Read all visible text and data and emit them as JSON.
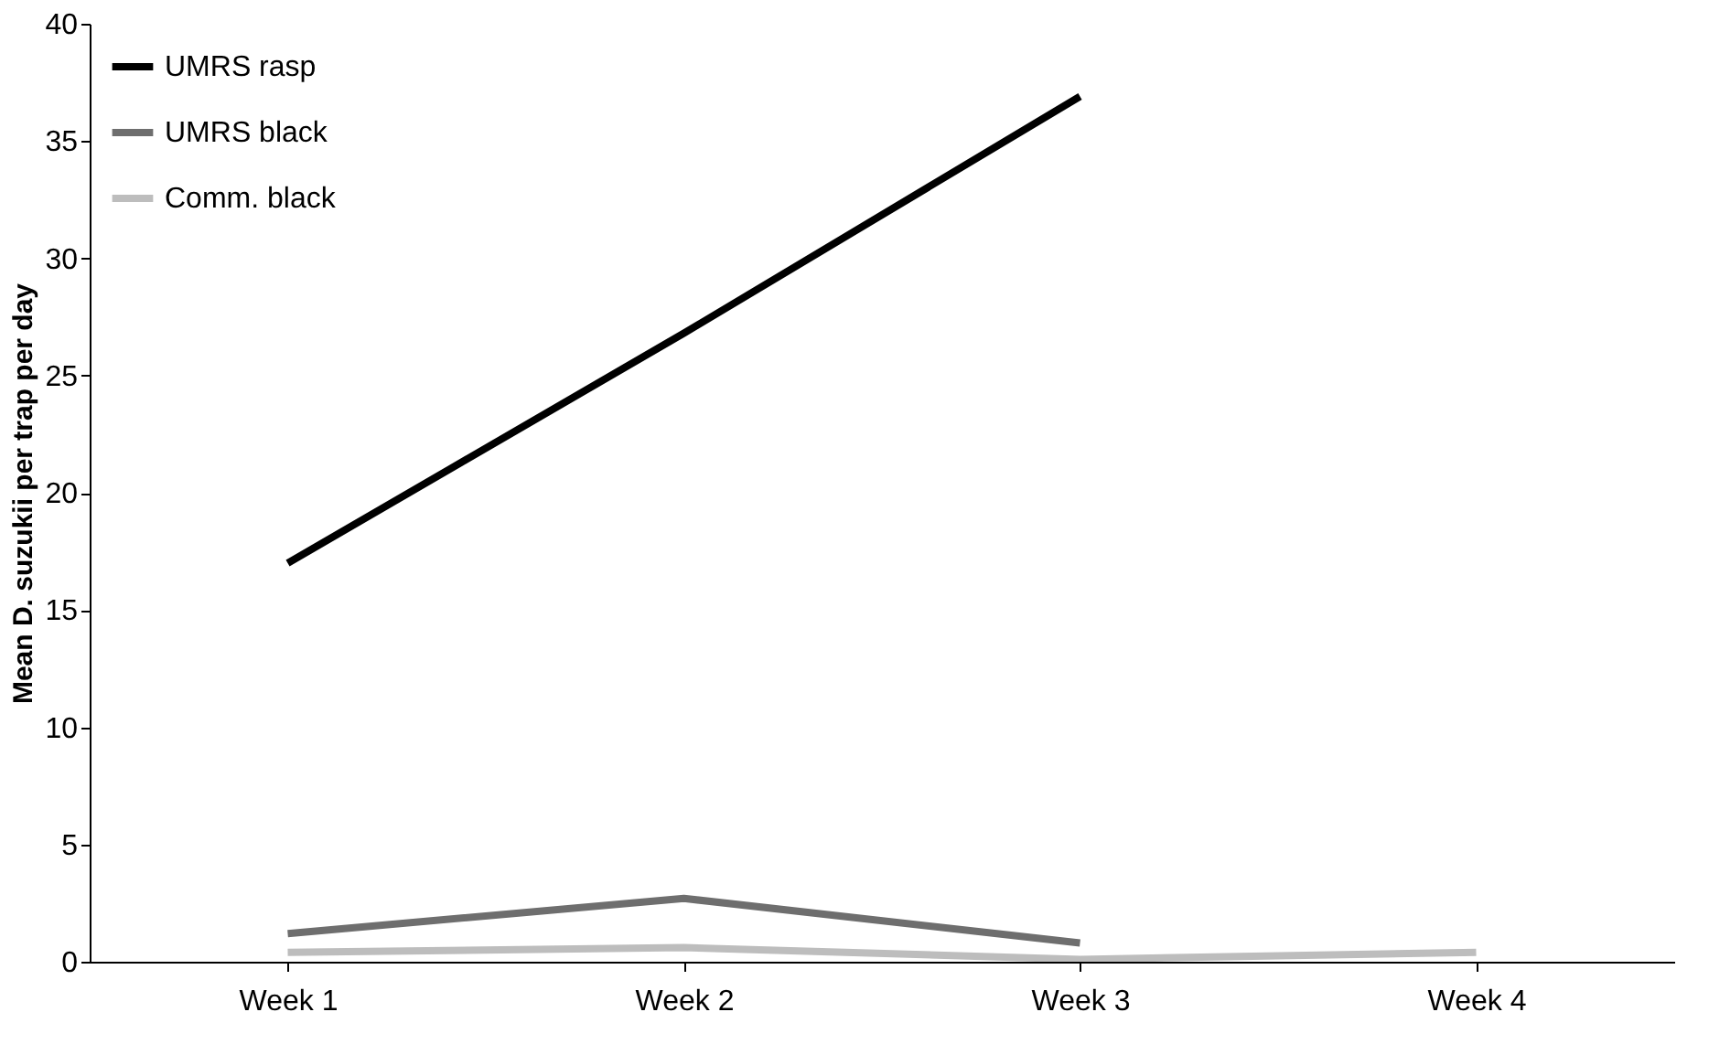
{
  "chart_data": {
    "type": "line",
    "ylabel": "Mean D. suzukii per trap per day",
    "categories": [
      "Week 1",
      "Week 2",
      "Week 3",
      "Week 4"
    ],
    "series": [
      {
        "name": "UMRS rasp",
        "color": "#000000",
        "values": [
          17.0,
          26.8,
          36.9,
          null
        ]
      },
      {
        "name": "UMRS black",
        "color": "#6e6e6e",
        "values": [
          1.2,
          2.7,
          0.8,
          null
        ]
      },
      {
        "name": "Comm. black",
        "color": "#bdbdbd",
        "values": [
          0.4,
          0.6,
          0.1,
          0.4
        ]
      }
    ],
    "ylim": [
      0,
      40
    ],
    "yticks": [
      0,
      5,
      10,
      15,
      20,
      25,
      30,
      35,
      40
    ],
    "grid": false,
    "legend": "top left",
    "marker": "none",
    "line_style": "solid"
  }
}
